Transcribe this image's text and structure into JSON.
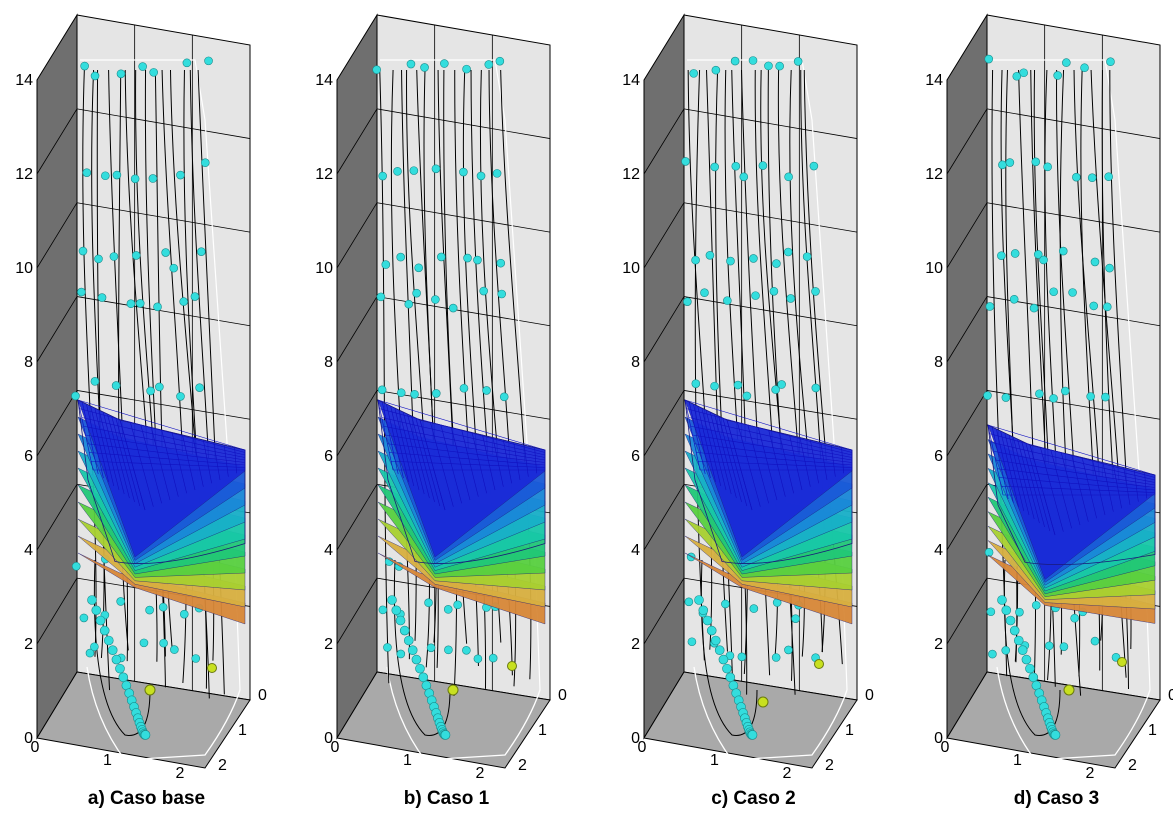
{
  "panels": [
    {
      "caption": "a) Caso base",
      "surface_shift": 0,
      "thickness": 1.0
    },
    {
      "caption": "b) Caso 1",
      "surface_shift": 0,
      "thickness": 1.0
    },
    {
      "caption": "c) Caso 2",
      "surface_shift": 0,
      "thickness": 1.0
    },
    {
      "caption": "d) Caso 3",
      "surface_shift": 1,
      "thickness": 0.85
    }
  ],
  "z_axis_ticks": [
    "0",
    "2",
    "4",
    "6",
    "8",
    "10",
    "12",
    "14"
  ],
  "x_axis_ticks": [
    "0",
    "1",
    "2"
  ],
  "y_axis_ticks": [
    "0",
    "1",
    "2"
  ],
  "colors": {
    "left_wall": "#6f6f6f",
    "back_wall": "#e5e5e5",
    "floor": "#a9a9a9",
    "particle": "#33dddd",
    "mesh_line": "#1010c0",
    "highlight": "#c8e020"
  }
}
